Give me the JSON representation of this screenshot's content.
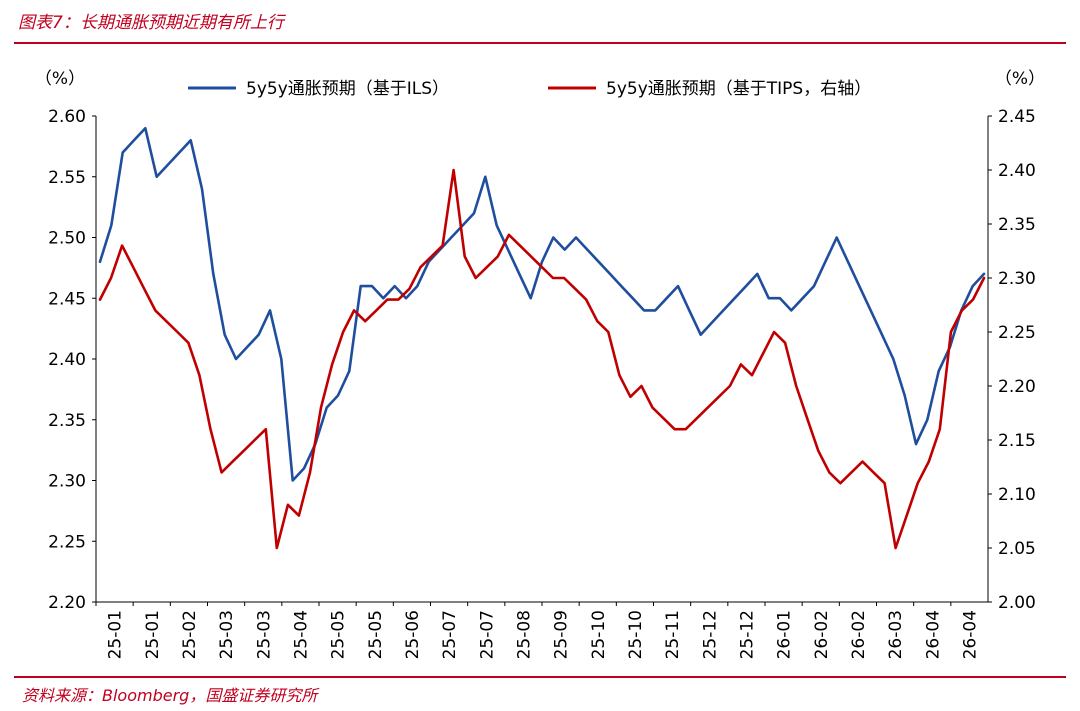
{
  "title": "图表7：长期通胀预期近期有所上行",
  "source": "资料来源：Bloomberg，国盛证券研究所",
  "chart_data": {
    "type": "line",
    "left_unit": "（%）",
    "right_unit": "（%）",
    "x_labels": [
      "25-01",
      "25-01",
      "25-02",
      "25-03",
      "25-03",
      "25-04",
      "25-05",
      "25-05",
      "25-06",
      "25-07",
      "25-07",
      "25-08",
      "25-09",
      "25-10",
      "25-10",
      "25-11",
      "25-12",
      "25-12",
      "26-01",
      "26-02",
      "26-02",
      "26-03",
      "26-04",
      "26-04"
    ],
    "left_axis": {
      "min": 2.2,
      "max": 2.6,
      "ticks": [
        "2.20",
        "2.25",
        "2.30",
        "2.35",
        "2.40",
        "2.45",
        "2.50",
        "2.55",
        "2.60"
      ]
    },
    "right_axis": {
      "min": 2.0,
      "max": 2.45,
      "ticks": [
        "2.00",
        "2.05",
        "2.10",
        "2.15",
        "2.20",
        "2.25",
        "2.30",
        "2.35",
        "2.40",
        "2.45"
      ]
    },
    "series": [
      {
        "name": "5y5y通胀预期（基于ILS）",
        "axis": "left",
        "color": "#1f4e9e",
        "values": [
          2.48,
          2.51,
          2.57,
          2.58,
          2.59,
          2.55,
          2.56,
          2.57,
          2.58,
          2.54,
          2.47,
          2.42,
          2.4,
          2.41,
          2.42,
          2.44,
          2.4,
          2.3,
          2.31,
          2.33,
          2.36,
          2.37,
          2.39,
          2.46,
          2.46,
          2.45,
          2.46,
          2.45,
          2.46,
          2.48,
          2.49,
          2.5,
          2.51,
          2.52,
          2.55,
          2.51,
          2.49,
          2.47,
          2.45,
          2.48,
          2.5,
          2.49,
          2.5,
          2.49,
          2.48,
          2.47,
          2.46,
          2.45,
          2.44,
          2.44,
          2.45,
          2.46,
          2.44,
          2.42,
          2.43,
          2.44,
          2.45,
          2.46,
          2.47,
          2.45,
          2.45,
          2.44,
          2.45,
          2.46,
          2.48,
          2.5,
          2.48,
          2.46,
          2.44,
          2.42,
          2.4,
          2.37,
          2.33,
          2.35,
          2.39,
          2.41,
          2.44,
          2.46,
          2.47
        ]
      },
      {
        "name": "5y5y通胀预期（基于TIPS，右轴）",
        "axis": "right",
        "color": "#c00000",
        "values": [
          2.28,
          2.3,
          2.33,
          2.31,
          2.29,
          2.27,
          2.26,
          2.25,
          2.24,
          2.21,
          2.16,
          2.12,
          2.13,
          2.14,
          2.15,
          2.16,
          2.05,
          2.09,
          2.08,
          2.12,
          2.18,
          2.22,
          2.25,
          2.27,
          2.26,
          2.27,
          2.28,
          2.28,
          2.29,
          2.31,
          2.32,
          2.33,
          2.4,
          2.32,
          2.3,
          2.31,
          2.32,
          2.34,
          2.33,
          2.32,
          2.31,
          2.3,
          2.3,
          2.29,
          2.28,
          2.26,
          2.25,
          2.21,
          2.19,
          2.2,
          2.18,
          2.17,
          2.16,
          2.16,
          2.17,
          2.18,
          2.19,
          2.2,
          2.22,
          2.21,
          2.23,
          2.25,
          2.24,
          2.2,
          2.17,
          2.14,
          2.12,
          2.11,
          2.12,
          2.13,
          2.12,
          2.11,
          2.05,
          2.08,
          2.11,
          2.13,
          2.16,
          2.25,
          2.27,
          2.28,
          2.3
        ]
      }
    ],
    "legend_position": "top"
  }
}
